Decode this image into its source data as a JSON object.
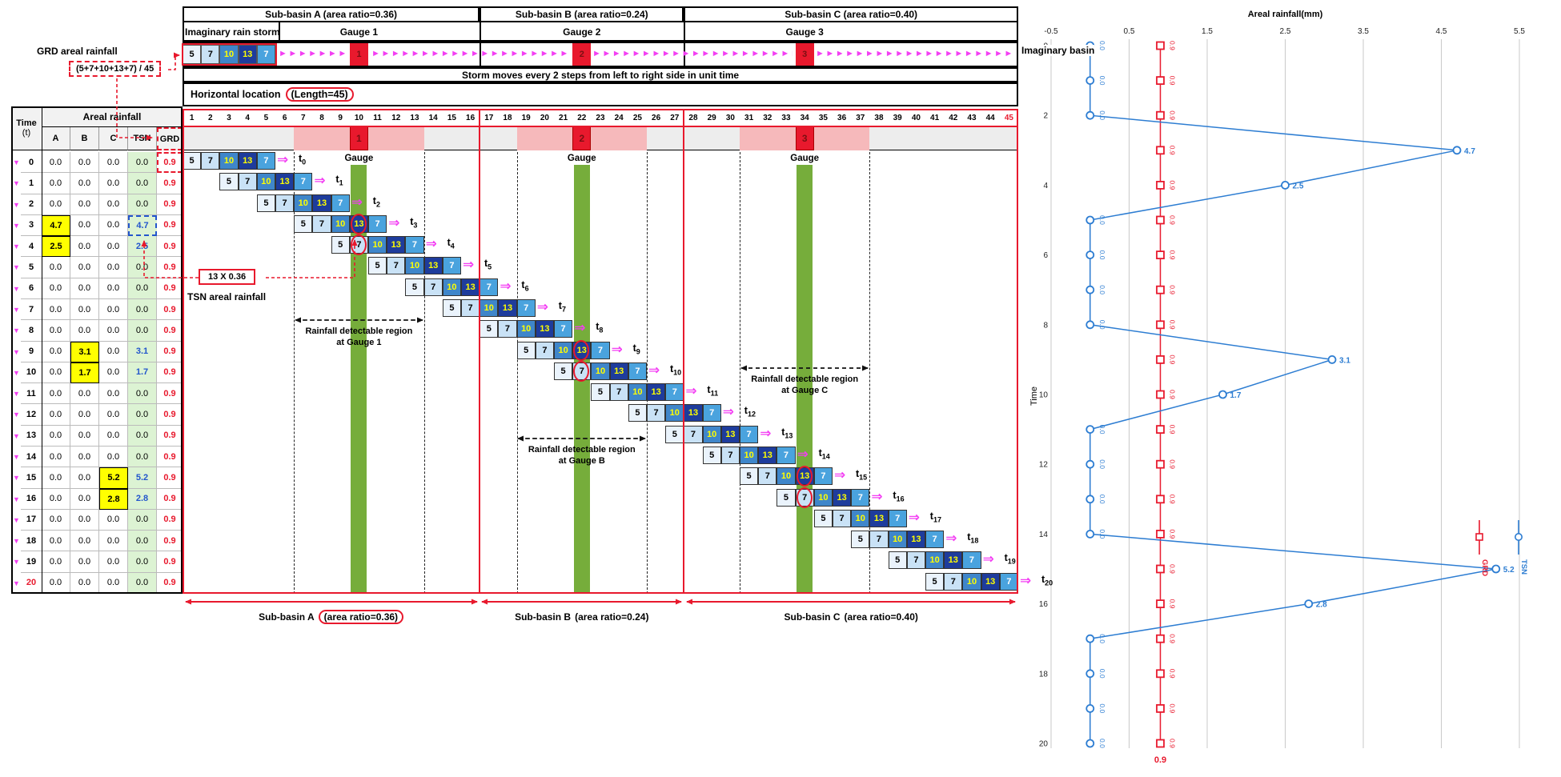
{
  "annotations": {
    "grd_areal_rainfall": "GRD areal rainfall",
    "grd_formula": "(5+7+10+13+7) / 45",
    "imaginary_rain_storm": "Imaginary rain storm",
    "imaginary_basin": "Imaginary basin",
    "storm_moves": "Storm moves every 2 steps from left to right side in unit time",
    "horizontal_location": "Horizontal location",
    "length_label": "(Length=45)",
    "tsn_formula": "13 X 0.36",
    "tsn_areal_rainfall": "TSN areal rainfall",
    "gauge_word": "Gauge",
    "detectable_line1": "Rainfall detectable region",
    "detectable_at": [
      "at Gauge 1",
      "at Gauge B",
      "at Gauge C"
    ]
  },
  "subbasins": [
    {
      "title": "Sub-basin A (area ratio=0.36)",
      "gauge": "Gauge 1",
      "start": 1,
      "end": 16,
      "gauge_loc": 10,
      "marker": "1",
      "bottom_label": "Sub-basin A",
      "bottom_ratio": "(area ratio=0.36)",
      "ratio_boxed": true
    },
    {
      "title": "Sub-basin B (area ratio=0.24)",
      "gauge": "Gauge 2",
      "start": 17,
      "end": 27,
      "gauge_loc": 22,
      "marker": "2",
      "bottom_label": "Sub-basin B",
      "bottom_ratio": "(area ratio=0.24)",
      "ratio_boxed": false
    },
    {
      "title": "Sub-basin C (area ratio=0.40)",
      "gauge": "Gauge 3",
      "start": 28,
      "end": 45,
      "gauge_loc": 34,
      "marker": "3",
      "bottom_label": "Sub-basin C",
      "bottom_ratio": "(area ratio=0.40)",
      "ratio_boxed": false
    }
  ],
  "storm_cells": [
    {
      "value": "5"
    },
    {
      "value": "7"
    },
    {
      "value": "10"
    },
    {
      "value": "13"
    },
    {
      "value": "7"
    }
  ],
  "locations": {
    "count": 45,
    "last_number_red": true
  },
  "time_steps": 21,
  "table": {
    "time_header": "Time",
    "time_header_sub": "(t)",
    "group_header": "Areal rainfall",
    "columns": [
      "A",
      "B",
      "C",
      "TSN",
      "GRD"
    ],
    "rows": [
      [
        "0",
        "0.0",
        "0.0",
        "0.0",
        "0.0",
        "0.9"
      ],
      [
        "1",
        "0.0",
        "0.0",
        "0.0",
        "0.0",
        "0.9"
      ],
      [
        "2",
        "0.0",
        "0.0",
        "0.0",
        "0.0",
        "0.9"
      ],
      [
        "3",
        "4.7",
        "0.0",
        "0.0",
        "4.7",
        "0.9"
      ],
      [
        "4",
        "2.5",
        "0.0",
        "0.0",
        "2.5",
        "0.9"
      ],
      [
        "5",
        "0.0",
        "0.0",
        "0.0",
        "0.0",
        "0.9"
      ],
      [
        "6",
        "0.0",
        "0.0",
        "0.0",
        "0.0",
        "0.9"
      ],
      [
        "7",
        "0.0",
        "0.0",
        "0.0",
        "0.0",
        "0.9"
      ],
      [
        "8",
        "0.0",
        "0.0",
        "0.0",
        "0.0",
        "0.9"
      ],
      [
        "9",
        "0.0",
        "3.1",
        "0.0",
        "3.1",
        "0.9"
      ],
      [
        "10",
        "0.0",
        "1.7",
        "0.0",
        "1.7",
        "0.9"
      ],
      [
        "11",
        "0.0",
        "0.0",
        "0.0",
        "0.0",
        "0.9"
      ],
      [
        "12",
        "0.0",
        "0.0",
        "0.0",
        "0.0",
        "0.9"
      ],
      [
        "13",
        "0.0",
        "0.0",
        "0.0",
        "0.0",
        "0.9"
      ],
      [
        "14",
        "0.0",
        "0.0",
        "0.0",
        "0.0",
        "0.9"
      ],
      [
        "15",
        "0.0",
        "0.0",
        "5.2",
        "5.2",
        "0.9"
      ],
      [
        "16",
        "0.0",
        "0.0",
        "2.8",
        "2.8",
        "0.9"
      ],
      [
        "17",
        "0.0",
        "0.0",
        "0.0",
        "0.0",
        "0.9"
      ],
      [
        "18",
        "0.0",
        "0.0",
        "0.0",
        "0.0",
        "0.9"
      ],
      [
        "19",
        "0.0",
        "0.0",
        "0.0",
        "0.0",
        "0.9"
      ],
      [
        "20",
        "0.0",
        "0.0",
        "0.0",
        "0.0",
        "0.9"
      ]
    ]
  },
  "colors": {
    "cell_colors": [
      "#eaf3fc",
      "#c9e2f6",
      "#3f86ca",
      "#1e3c9c",
      "#4aa3de"
    ],
    "cell_text": [
      "#000000",
      "#000000",
      "#ffff00",
      "#ffff00",
      "#ffffff"
    ],
    "accent_red": "#e8192d",
    "magenta": "#f33ff3",
    "green_bar": "#76ad3b",
    "tsn_green": "#dcf3d3",
    "highlight_yellow": "#ffff00",
    "blue_value": "#2255cc"
  },
  "chart_data": {
    "type": "line",
    "title": "Areal rainfall(mm)",
    "time_axis_label": "Time",
    "x_ticks": [
      "-0.5",
      "0.5",
      "1.5",
      "2.5",
      "3.5",
      "4.5",
      "5.5"
    ],
    "x_range": [
      -0.5,
      5.5
    ],
    "time_ticks": [
      "0",
      "2",
      "4",
      "6",
      "8",
      "10",
      "12",
      "14",
      "16",
      "18",
      "20"
    ],
    "time_range": [
      0,
      20
    ],
    "grid": true,
    "legend_position": "bottom-right",
    "series": [
      {
        "name": "GRD",
        "color": "#e8192d",
        "marker": "square",
        "values": [
          0.9,
          0.9,
          0.9,
          0.9,
          0.9,
          0.9,
          0.9,
          0.9,
          0.9,
          0.9,
          0.9,
          0.9,
          0.9,
          0.9,
          0.9,
          0.9,
          0.9,
          0.9,
          0.9,
          0.9,
          0.9
        ]
      },
      {
        "name": "TSN",
        "color": "#2d7dd2",
        "marker": "circle",
        "values": [
          0.0,
          0.0,
          0.0,
          4.7,
          2.5,
          0.0,
          0.0,
          0.0,
          0.0,
          3.1,
          1.7,
          0.0,
          0.0,
          0.0,
          0.0,
          5.2,
          2.8,
          0.0,
          0.0,
          0.0,
          0.0
        ]
      }
    ],
    "legend": [
      "GRD",
      "TSN"
    ],
    "bottom_label": "0.9"
  }
}
